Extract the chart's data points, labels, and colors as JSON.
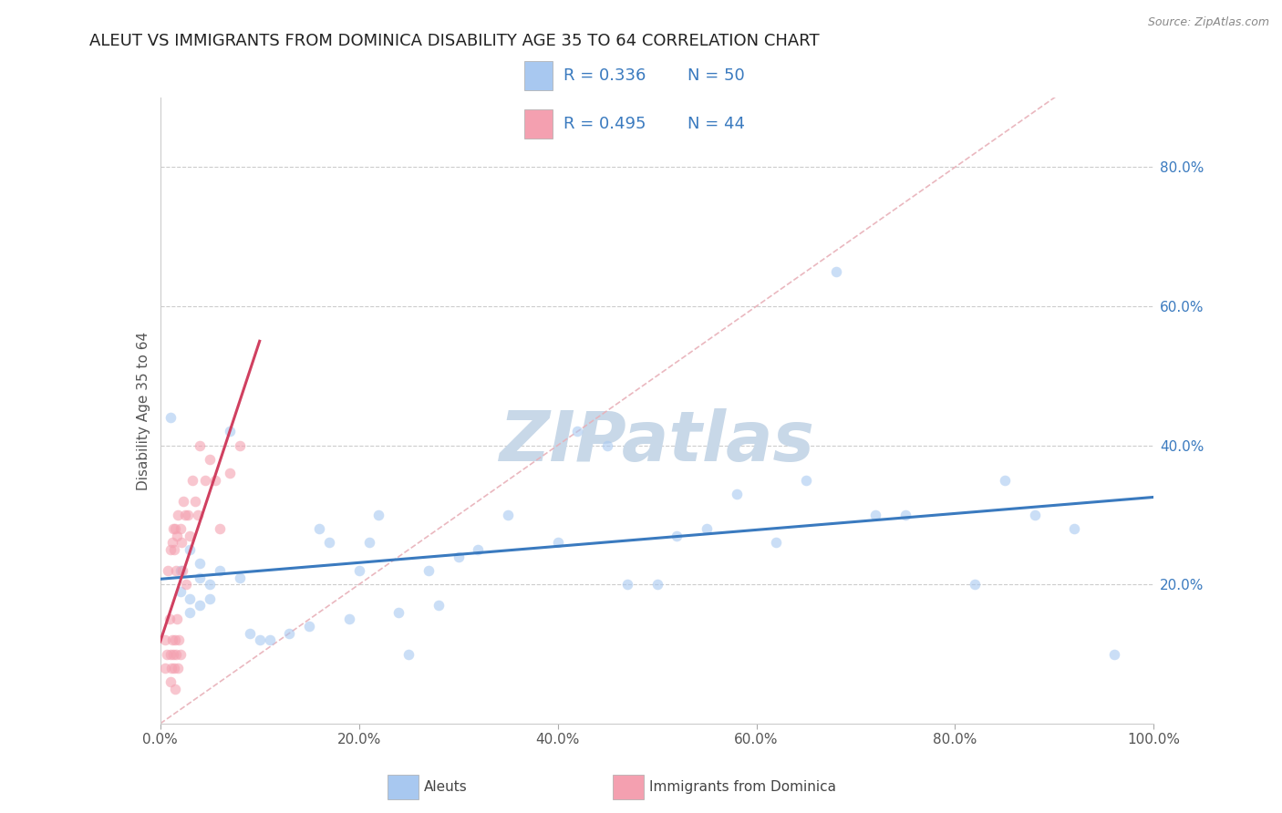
{
  "title": "ALEUT VS IMMIGRANTS FROM DOMINICA DISABILITY AGE 35 TO 64 CORRELATION CHART",
  "source": "Source: ZipAtlas.com",
  "ylabel": "Disability Age 35 to 64",
  "legend_labels": [
    "Aleuts",
    "Immigrants from Dominica"
  ],
  "r_aleut": 0.336,
  "n_aleut": 50,
  "r_dominica": 0.495,
  "n_dominica": 44,
  "aleut_color": "#a8c8f0",
  "dominica_color": "#f4a0b0",
  "trendline_aleut_color": "#3a7abf",
  "trendline_dominica_color": "#d04060",
  "diagonal_color": "#e8b0b8",
  "background_color": "#ffffff",
  "grid_color": "#cccccc",
  "xlim": [
    0,
    1.0
  ],
  "ylim": [
    0,
    0.9
  ],
  "xticks": [
    0,
    0.2,
    0.4,
    0.6,
    0.8,
    1.0
  ],
  "yticks": [
    0.2,
    0.4,
    0.6,
    0.8
  ],
  "xticklabels": [
    "0.0%",
    "20.0%",
    "40.0%",
    "60.0%",
    "80.0%",
    "100.0%"
  ],
  "yticklabels_right": [
    "20.0%",
    "40.0%",
    "60.0%",
    "80.0%"
  ],
  "aleut_x": [
    0.01,
    0.02,
    0.02,
    0.03,
    0.03,
    0.03,
    0.04,
    0.04,
    0.04,
    0.05,
    0.05,
    0.06,
    0.07,
    0.08,
    0.09,
    0.1,
    0.11,
    0.13,
    0.15,
    0.16,
    0.17,
    0.19,
    0.2,
    0.21,
    0.22,
    0.24,
    0.25,
    0.27,
    0.28,
    0.3,
    0.32,
    0.35,
    0.4,
    0.42,
    0.45,
    0.47,
    0.5,
    0.52,
    0.55,
    0.58,
    0.62,
    0.65,
    0.68,
    0.72,
    0.75,
    0.82,
    0.85,
    0.88,
    0.92,
    0.96
  ],
  "aleut_y": [
    0.44,
    0.22,
    0.19,
    0.25,
    0.18,
    0.16,
    0.23,
    0.21,
    0.17,
    0.2,
    0.18,
    0.22,
    0.42,
    0.21,
    0.13,
    0.12,
    0.12,
    0.13,
    0.14,
    0.28,
    0.26,
    0.15,
    0.22,
    0.26,
    0.3,
    0.16,
    0.1,
    0.22,
    0.17,
    0.24,
    0.25,
    0.3,
    0.26,
    0.42,
    0.4,
    0.2,
    0.2,
    0.27,
    0.28,
    0.33,
    0.26,
    0.35,
    0.65,
    0.3,
    0.3,
    0.2,
    0.35,
    0.3,
    0.28,
    0.1
  ],
  "dominica_x": [
    0.005,
    0.005,
    0.007,
    0.008,
    0.009,
    0.01,
    0.01,
    0.01,
    0.011,
    0.012,
    0.012,
    0.013,
    0.013,
    0.014,
    0.014,
    0.015,
    0.015,
    0.015,
    0.016,
    0.016,
    0.017,
    0.017,
    0.018,
    0.018,
    0.019,
    0.02,
    0.02,
    0.021,
    0.022,
    0.023,
    0.025,
    0.026,
    0.028,
    0.03,
    0.032,
    0.035,
    0.038,
    0.04,
    0.045,
    0.05,
    0.055,
    0.06,
    0.07,
    0.08
  ],
  "dominica_y": [
    0.12,
    0.08,
    0.1,
    0.22,
    0.15,
    0.06,
    0.1,
    0.25,
    0.08,
    0.12,
    0.26,
    0.1,
    0.28,
    0.08,
    0.25,
    0.05,
    0.12,
    0.28,
    0.1,
    0.22,
    0.15,
    0.27,
    0.08,
    0.3,
    0.12,
    0.1,
    0.28,
    0.26,
    0.22,
    0.32,
    0.3,
    0.2,
    0.3,
    0.27,
    0.35,
    0.32,
    0.3,
    0.4,
    0.35,
    0.38,
    0.35,
    0.28,
    0.36,
    0.4
  ],
  "marker_size": 70,
  "marker_alpha": 0.6,
  "title_fontsize": 13,
  "axis_label_fontsize": 11,
  "tick_fontsize": 11,
  "legend_fontsize": 13,
  "watermark_text": "ZIPatlas",
  "watermark_color": "#c8d8e8",
  "watermark_fontsize": 55
}
